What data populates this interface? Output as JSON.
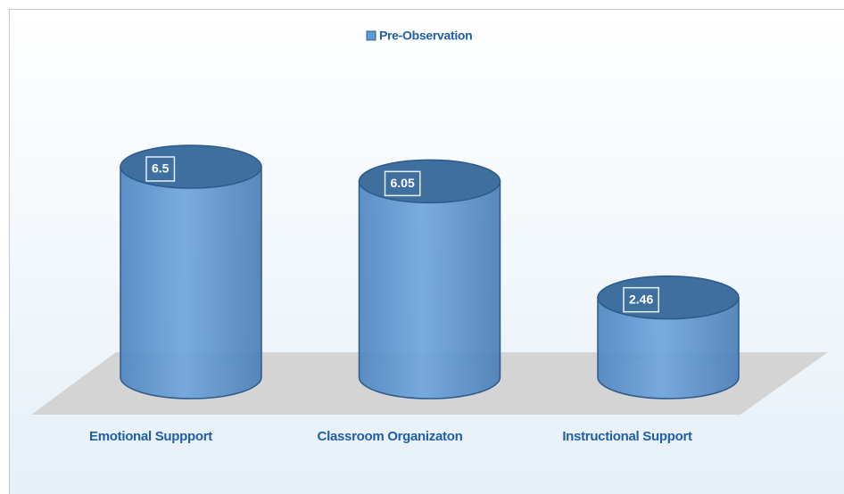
{
  "chart_data": {
    "type": "cylinder-bar",
    "categories": [
      "Emotional Suppport",
      "Classroom Organizaton",
      "Instructional Support"
    ],
    "series": [
      {
        "name": "Pre-Observation",
        "color": "#5b9bd5",
        "values": [
          6.5,
          6.05,
          2.46
        ]
      }
    ],
    "legend": "top"
  }
}
